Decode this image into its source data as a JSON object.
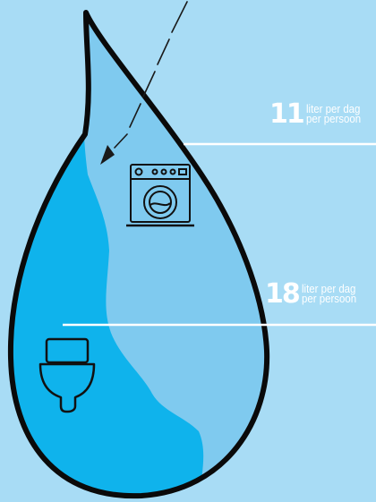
{
  "colors": {
    "background": "#a8dcf5",
    "drop_light": "#7fcaef",
    "drop_dark": "#0fb3ec",
    "outline": "#0a0a0a",
    "text": "#ffffff"
  },
  "stats": [
    {
      "value": "11",
      "line1": "liter per dag",
      "line2": "per persoon",
      "icon": "washing-machine-icon"
    },
    {
      "value": "18",
      "line1": "liter per dag",
      "line2": "per persoon",
      "icon": "toilet-icon"
    }
  ]
}
